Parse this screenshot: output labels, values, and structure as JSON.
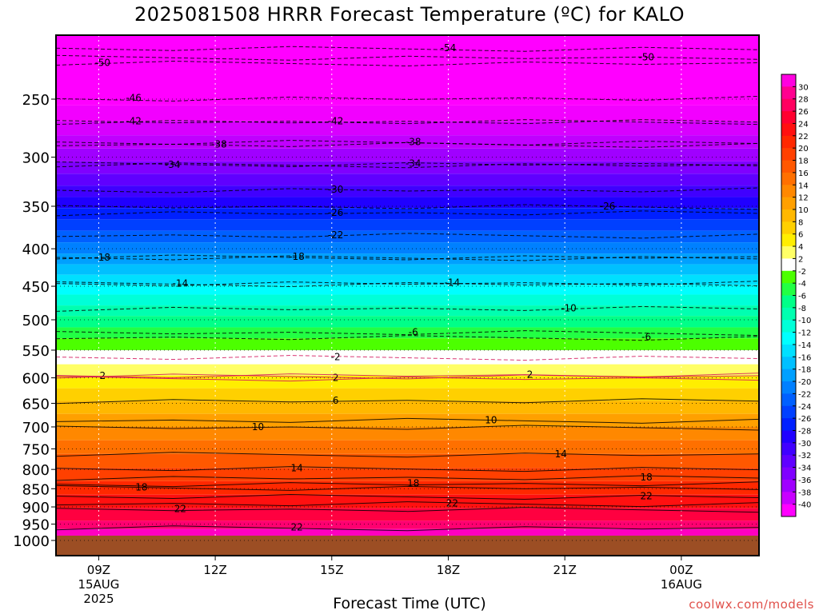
{
  "title": "2025081508 HRRR Forecast Temperature (ºC) for KALO",
  "xlabel": "Forecast Time (UTC)",
  "watermark": "coolwx.com/models",
  "chart_data": {
    "type": "heatmap",
    "title": "2025081508 HRRR Forecast Temperature (ºC) for KALO",
    "xlabel": "Forecast Time (UTC)",
    "ylabel": "",
    "x_axis": {
      "range_hours_utc": [
        7.9,
        26.0
      ],
      "ticks": [
        {
          "hour": 9,
          "label": "09Z",
          "sub": [
            "15AUG",
            "2025"
          ]
        },
        {
          "hour": 12,
          "label": "12Z",
          "sub": []
        },
        {
          "hour": 15,
          "label": "15Z",
          "sub": []
        },
        {
          "hour": 18,
          "label": "18Z",
          "sub": []
        },
        {
          "hour": 21,
          "label": "21Z",
          "sub": []
        },
        {
          "hour": 24,
          "label": "00Z",
          "sub": [
            "16AUG"
          ]
        }
      ]
    },
    "y_axis": {
      "quantity": "pressure (hPa)",
      "scale": "log",
      "reversed": true,
      "range": [
        1050,
        200
      ],
      "ticks": [
        250,
        300,
        350,
        400,
        450,
        500,
        550,
        600,
        650,
        700,
        750,
        800,
        850,
        900,
        950,
        1000
      ]
    },
    "grid": true,
    "temperature_scale": {
      "levels": [
        -40,
        -38,
        -36,
        -34,
        -32,
        -30,
        -28,
        -26,
        -24,
        -22,
        -20,
        -18,
        -16,
        -14,
        -12,
        -10,
        -8,
        -6,
        -4,
        -2,
        2,
        4,
        6,
        8,
        10,
        12,
        14,
        16,
        18,
        20,
        22,
        24,
        26,
        28,
        30
      ],
      "labels": [
        "30",
        "28",
        "26",
        "24",
        "22",
        "20",
        "18",
        "16",
        "14",
        "12",
        "10",
        "8",
        "6",
        "4",
        "2",
        "-2",
        "-4",
        "-6",
        "-8",
        "-10",
        "-12",
        "-14",
        "-16",
        "-18",
        "-20",
        "-22",
        "-24",
        "-26",
        "-28",
        "-30",
        "-32",
        "-34",
        "-36",
        "-38",
        "-40"
      ],
      "colors_high_to_low": [
        "#ff00e0",
        "#ff0090",
        "#ff0060",
        "#ff0030",
        "#ff1010",
        "#ff2800",
        "#ff4000",
        "#ff5800",
        "#ff7000",
        "#ff8800",
        "#ffa000",
        "#ffb800",
        "#ffd000",
        "#ffee00",
        "#ffff66",
        "#ffffff",
        "#4cff00",
        "#22ff44",
        "#00ff88",
        "#00ffb0",
        "#00ffd8",
        "#00ffff",
        "#00e0ff",
        "#00c0ff",
        "#00a0ff",
        "#0080ff",
        "#0060ff",
        "#0040ff",
        "#0020ff",
        "#2000ff",
        "#4000ff",
        "#6000ff",
        "#8000ff",
        "#a000ff",
        "#c800ff",
        "#ff00ff"
      ]
    },
    "contour_labels": [
      {
        "value": "-54",
        "hour": 18.0,
        "p": 213
      },
      {
        "value": "-50",
        "hour": 9.1,
        "p": 223
      },
      {
        "value": "-50",
        "hour": 23.1,
        "p": 219
      },
      {
        "value": "-46",
        "hour": 9.9,
        "p": 249
      },
      {
        "value": "-42",
        "hour": 9.9,
        "p": 268
      },
      {
        "value": "-42",
        "hour": 15.1,
        "p": 268
      },
      {
        "value": "-38",
        "hour": 12.1,
        "p": 288
      },
      {
        "value": "-38",
        "hour": 17.1,
        "p": 286
      },
      {
        "value": "-34",
        "hour": 10.9,
        "p": 307
      },
      {
        "value": "-34",
        "hour": 17.1,
        "p": 306
      },
      {
        "value": "-30",
        "hour": 15.1,
        "p": 332
      },
      {
        "value": "-26",
        "hour": 15.1,
        "p": 357
      },
      {
        "value": "-26",
        "hour": 22.1,
        "p": 350
      },
      {
        "value": "-22",
        "hour": 15.1,
        "p": 383
      },
      {
        "value": "-18",
        "hour": 9.1,
        "p": 411
      },
      {
        "value": "-18",
        "hour": 14.1,
        "p": 410
      },
      {
        "value": "-14",
        "hour": 11.1,
        "p": 446
      },
      {
        "value": "-14",
        "hour": 18.1,
        "p": 445
      },
      {
        "value": "-10",
        "hour": 21.1,
        "p": 482
      },
      {
        "value": "-6",
        "hour": 17.1,
        "p": 520
      },
      {
        "value": "-6",
        "hour": 23.1,
        "p": 528
      },
      {
        "value": "-2",
        "hour": 15.1,
        "p": 562
      },
      {
        "value": "2",
        "hour": 9.1,
        "p": 596
      },
      {
        "value": "2",
        "hour": 15.1,
        "p": 600
      },
      {
        "value": "2",
        "hour": 20.1,
        "p": 594
      },
      {
        "value": "6",
        "hour": 15.1,
        "p": 644
      },
      {
        "value": "10",
        "hour": 13.1,
        "p": 700
      },
      {
        "value": "10",
        "hour": 19.1,
        "p": 685
      },
      {
        "value": "14",
        "hour": 14.1,
        "p": 797
      },
      {
        "value": "14",
        "hour": 20.9,
        "p": 762
      },
      {
        "value": "18",
        "hour": 10.1,
        "p": 846
      },
      {
        "value": "18",
        "hour": 17.1,
        "p": 836
      },
      {
        "value": "18",
        "hour": 23.1,
        "p": 820
      },
      {
        "value": "22",
        "hour": 11.1,
        "p": 906
      },
      {
        "value": "22",
        "hour": 18.1,
        "p": 890
      },
      {
        "value": "22",
        "hour": 23.1,
        "p": 870
      },
      {
        "value": "22",
        "hour": 14.1,
        "p": 960
      }
    ],
    "ground": {
      "color": "#9c4e24",
      "p_top": 985
    },
    "legend": "right"
  }
}
